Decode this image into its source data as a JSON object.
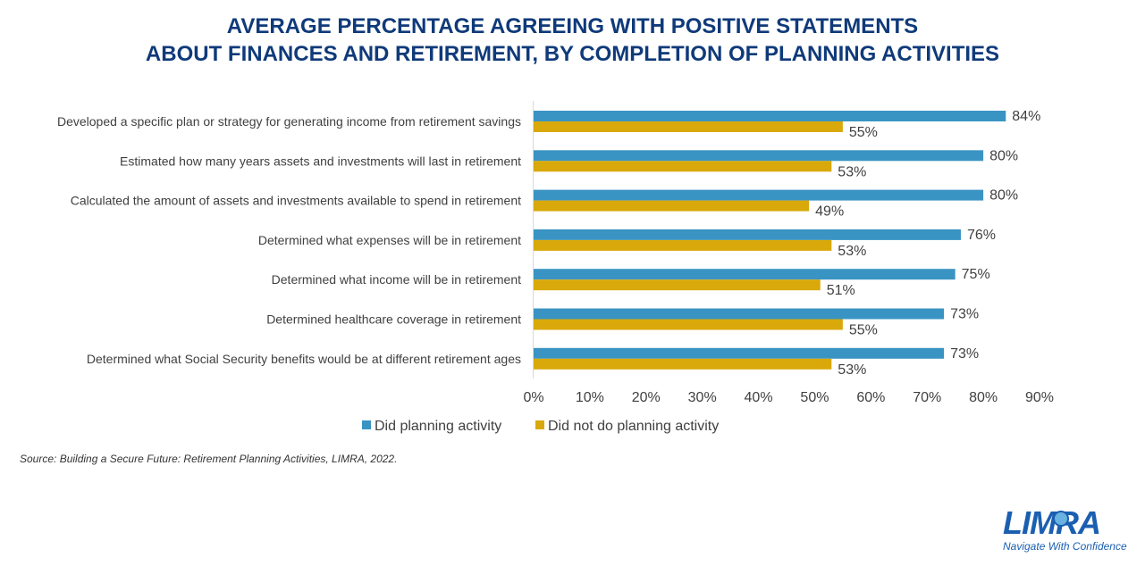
{
  "title_lines": [
    "AVERAGE PERCENTAGE AGREEING WITH POSITIVE STATEMENTS",
    "ABOUT FINANCES AND RETIREMENT, BY COMPLETION OF PLANNING ACTIVITIES"
  ],
  "source": "Source: Building a Secure Future: Retirement Planning Activities, LIMRA, 2022.",
  "logo": {
    "word": "LIMRA",
    "tagline": "Navigate With Confidence"
  },
  "colors": {
    "did": "#3a94c3",
    "did_not": "#d9a90b",
    "title": "#0f3a7a",
    "logo": "#1b5fb0"
  },
  "chart_data": {
    "type": "bar",
    "orientation": "horizontal",
    "categories": [
      "Developed a specific plan or strategy for generating income from retirement savings",
      "Estimated how many years assets and investments will last in retirement",
      "Calculated the amount of assets and investments available to spend in retirement",
      "Determined what expenses will be in retirement",
      "Determined what income will be in retirement",
      "Determined healthcare coverage in retirement",
      "Determined what Social Security benefits would be at different retirement ages"
    ],
    "series": [
      {
        "name": "Did planning activity",
        "values": [
          84,
          80,
          80,
          76,
          75,
          73,
          73
        ],
        "labels": [
          "84%",
          "80%",
          "80%",
          "76%",
          "75%",
          "73%",
          "73%"
        ]
      },
      {
        "name": "Did not do planning activity",
        "values": [
          55,
          53,
          49,
          53,
          51,
          55,
          53
        ],
        "labels": [
          "55%",
          "53%",
          "49%",
          "53%",
          "51%",
          "55%",
          "53%"
        ]
      }
    ],
    "xlim": [
      0,
      90
    ],
    "xticks": [
      0,
      10,
      20,
      30,
      40,
      50,
      60,
      70,
      80,
      90
    ],
    "xtick_labels": [
      "0%",
      "10%",
      "20%",
      "30%",
      "40%",
      "50%",
      "60%",
      "70%",
      "80%",
      "90%"
    ],
    "grid": false,
    "legend_position": "bottom"
  }
}
